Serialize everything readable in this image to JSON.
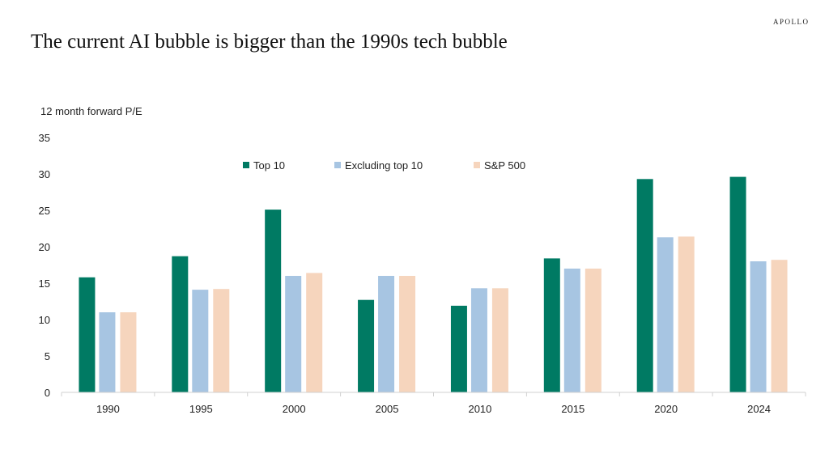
{
  "header": {
    "title": "The current AI bubble is bigger than the 1990s tech bubble",
    "logo": "APOLLO"
  },
  "chart_data": {
    "type": "bar",
    "title": "The current AI bubble is bigger than the 1990s tech bubble",
    "ylabel": "12 month forward P/E",
    "xlabel": "",
    "ylim": [
      0,
      35
    ],
    "yticks": [
      0,
      5,
      10,
      15,
      20,
      25,
      30,
      35
    ],
    "grid": false,
    "legend": "top-center",
    "categories": [
      "1990",
      "1995",
      "2000",
      "2005",
      "2010",
      "2015",
      "2020",
      "2024"
    ],
    "series": [
      {
        "name": "Top 10",
        "color": "#007a63",
        "values": [
          15.8,
          18.7,
          25.1,
          12.7,
          11.9,
          18.4,
          29.3,
          29.6
        ]
      },
      {
        "name": "Excluding top 10",
        "color": "#a7c5e2",
        "values": [
          11.0,
          14.1,
          16.0,
          16.0,
          14.3,
          17.0,
          21.3,
          18.0
        ]
      },
      {
        "name": "S&P 500",
        "color": "#f6d5bd",
        "values": [
          11.0,
          14.2,
          16.4,
          16.0,
          14.3,
          17.0,
          21.4,
          18.2
        ]
      }
    ]
  }
}
